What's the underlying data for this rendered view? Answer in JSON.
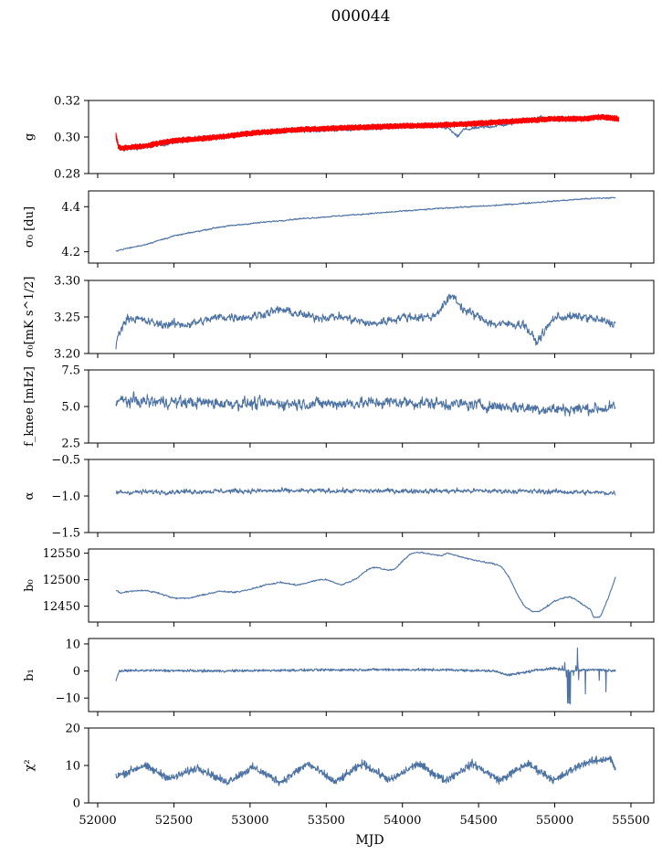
{
  "figure": {
    "title": "000044",
    "xlabel": "MJD"
  },
  "colors": {
    "data": "#4c72a4",
    "fit": "#ff0000"
  },
  "chart_data": [
    {
      "type": "line",
      "ylabel": "g",
      "xlim": [
        51940,
        55650
      ],
      "ylim": [
        0.28,
        0.32
      ],
      "yticks": [
        "0.28",
        "0.30",
        "0.32"
      ],
      "ytick_values": [
        0.28,
        0.3,
        0.32
      ],
      "series": [
        {
          "color": "#4c72a4",
          "style": "noisy",
          "noise": 0.0012,
          "x": [
            52120,
            52150,
            52300,
            52500,
            52800,
            53000,
            53300,
            53600,
            53900,
            54100,
            54300,
            54360,
            54400,
            54700,
            54850,
            54900,
            55000,
            55200,
            55300,
            55400
          ],
          "y": [
            0.298,
            0.293,
            0.294,
            0.297,
            0.3,
            0.302,
            0.303,
            0.304,
            0.305,
            0.306,
            0.305,
            0.3,
            0.304,
            0.307,
            0.31,
            0.311,
            0.309,
            0.31,
            0.311,
            0.31
          ]
        },
        {
          "color": "#ff0000",
          "style": "band",
          "noise": 0.0013,
          "x": [
            52120,
            52135,
            52150,
            52300,
            52500,
            52800,
            53000,
            53300,
            53600,
            54000,
            54400,
            54800,
            55000,
            55200,
            55300,
            55420
          ],
          "y": [
            0.301,
            0.295,
            0.294,
            0.295,
            0.298,
            0.3,
            0.302,
            0.304,
            0.305,
            0.306,
            0.307,
            0.309,
            0.31,
            0.31,
            0.311,
            0.31
          ]
        }
      ]
    },
    {
      "type": "line",
      "ylabel": "σ₀ [du]",
      "xlim": [
        51940,
        55650
      ],
      "ylim": [
        4.15,
        4.47
      ],
      "yticks": [
        "4.2",
        "4.4"
      ],
      "ytick_values": [
        4.2,
        4.4
      ],
      "series": [
        {
          "color": "#4c72a4",
          "style": "noisy",
          "noise": 0.004,
          "x": [
            52120,
            52300,
            52500,
            52800,
            53000,
            53300,
            53600,
            53900,
            54100,
            54300,
            54600,
            54900,
            55200,
            55400
          ],
          "y": [
            4.205,
            4.23,
            4.27,
            4.31,
            4.325,
            4.345,
            4.36,
            4.375,
            4.385,
            4.395,
            4.405,
            4.42,
            4.435,
            4.44
          ]
        }
      ]
    },
    {
      "type": "line",
      "ylabel": "σ₀[mK s^1/2]",
      "xlim": [
        51940,
        55650
      ],
      "ylim": [
        3.2,
        3.3
      ],
      "yticks": [
        "3.20",
        "3.25",
        "3.30"
      ],
      "ytick_values": [
        3.2,
        3.25,
        3.3
      ],
      "series": [
        {
          "color": "#4c72a4",
          "style": "noisy",
          "noise": 0.008,
          "x": [
            52120,
            52140,
            52200,
            52400,
            52600,
            52800,
            53000,
            53200,
            53400,
            53600,
            53800,
            54000,
            54200,
            54330,
            54400,
            54600,
            54800,
            54880,
            55000,
            55200,
            55400
          ],
          "y": [
            3.21,
            3.23,
            3.25,
            3.24,
            3.24,
            3.25,
            3.25,
            3.26,
            3.25,
            3.25,
            3.24,
            3.25,
            3.25,
            3.28,
            3.26,
            3.24,
            3.24,
            3.215,
            3.25,
            3.25,
            3.24
          ]
        }
      ]
    },
    {
      "type": "line",
      "ylabel": "f_knee [mHz]",
      "xlim": [
        51940,
        55650
      ],
      "ylim": [
        2.5,
        7.5
      ],
      "yticks": [
        "2.5",
        "5.0",
        "7.5"
      ],
      "ytick_values": [
        2.5,
        5.0,
        7.5
      ],
      "series": [
        {
          "color": "#4c72a4",
          "style": "noisy",
          "noise": 0.55,
          "x": [
            52120,
            52500,
            53000,
            53500,
            54000,
            54500,
            55000,
            55400
          ],
          "y": [
            5.4,
            5.3,
            5.2,
            5.2,
            5.3,
            5.1,
            4.8,
            4.9
          ]
        }
      ]
    },
    {
      "type": "line",
      "ylabel": "α",
      "xlim": [
        51940,
        55650
      ],
      "ylim": [
        -1.5,
        -0.5
      ],
      "yticks": [
        "−1.5",
        "−1.0",
        "−0.5"
      ],
      "ytick_values": [
        -1.5,
        -1.0,
        -0.5
      ],
      "series": [
        {
          "color": "#4c72a4",
          "style": "noisy",
          "noise": 0.045,
          "x": [
            52120,
            52500,
            53000,
            53500,
            54000,
            54500,
            55000,
            55400
          ],
          "y": [
            -0.95,
            -0.94,
            -0.93,
            -0.93,
            -0.93,
            -0.93,
            -0.94,
            -0.96
          ]
        }
      ]
    },
    {
      "type": "line",
      "ylabel": "b₀",
      "xlim": [
        51940,
        55650
      ],
      "ylim": [
        12420,
        12558
      ],
      "yticks": [
        "12450",
        "12500",
        "12550"
      ],
      "ytick_values": [
        12450,
        12500,
        12550
      ],
      "series": [
        {
          "color": "#4c72a4",
          "style": "smooth",
          "noise": 1.2,
          "x": [
            52120,
            52150,
            52200,
            52300,
            52400,
            52500,
            52600,
            52700,
            52800,
            52900,
            53000,
            53100,
            53200,
            53300,
            53350,
            53450,
            53500,
            53600,
            53700,
            53750,
            53800,
            53850,
            53900,
            53950,
            54000,
            54050,
            54100,
            54200,
            54250,
            54300,
            54400,
            54500,
            54600,
            54650,
            54700,
            54750,
            54800,
            54850,
            54900,
            55000,
            55050,
            55100,
            55150,
            55200,
            55230,
            55260,
            55300,
            55350,
            55400
          ],
          "y": [
            12480,
            12475,
            12478,
            12480,
            12475,
            12465,
            12465,
            12472,
            12478,
            12476,
            12482,
            12490,
            12495,
            12490,
            12492,
            12500,
            12500,
            12490,
            12502,
            12515,
            12523,
            12522,
            12518,
            12520,
            12535,
            12548,
            12552,
            12548,
            12545,
            12550,
            12542,
            12535,
            12530,
            12525,
            12505,
            12475,
            12450,
            12440,
            12440,
            12460,
            12465,
            12468,
            12460,
            12450,
            12445,
            12428,
            12430,
            12465,
            12505
          ]
        }
      ]
    },
    {
      "type": "line",
      "ylabel": "b₁",
      "xlim": [
        51940,
        55650
      ],
      "ylim": [
        -15,
        12
      ],
      "yticks": [
        "−10",
        "0",
        "10"
      ],
      "ytick_values": [
        -10,
        0,
        10
      ],
      "series": [
        {
          "color": "#4c72a4",
          "style": "spiky",
          "noise": 0.4,
          "x": [
            52120,
            52140,
            52300,
            52800,
            53300,
            53800,
            54300,
            54600,
            54700,
            54900,
            55000,
            55100,
            55200,
            55300,
            55400
          ],
          "y": [
            -3.5,
            0,
            0.2,
            0,
            0.3,
            0.5,
            0.4,
            0,
            -1.5,
            0.5,
            1,
            0,
            0.5,
            0.5,
            0
          ]
        }
      ]
    },
    {
      "type": "line",
      "ylabel": "χ²",
      "xlim": [
        51940,
        55650
      ],
      "ylim": [
        0,
        20
      ],
      "yticks": [
        "0",
        "10",
        "20"
      ],
      "ytick_values": [
        0,
        10,
        20
      ],
      "series": [
        {
          "color": "#4c72a4",
          "style": "periodic",
          "noise": 0.9,
          "x": [
            52120,
            52300,
            52480,
            52660,
            52840,
            53020,
            53200,
            53380,
            53560,
            53740,
            53920,
            54100,
            54280,
            54460,
            54640,
            54820,
            55000,
            55180,
            55360,
            55400
          ],
          "y": [
            7,
            10,
            6.5,
            9.5,
            5.5,
            9.5,
            5.5,
            10.5,
            5.5,
            10.5,
            6,
            10.5,
            6,
            10.5,
            6,
            10.5,
            6,
            10.5,
            12,
            9
          ]
        }
      ]
    }
  ]
}
